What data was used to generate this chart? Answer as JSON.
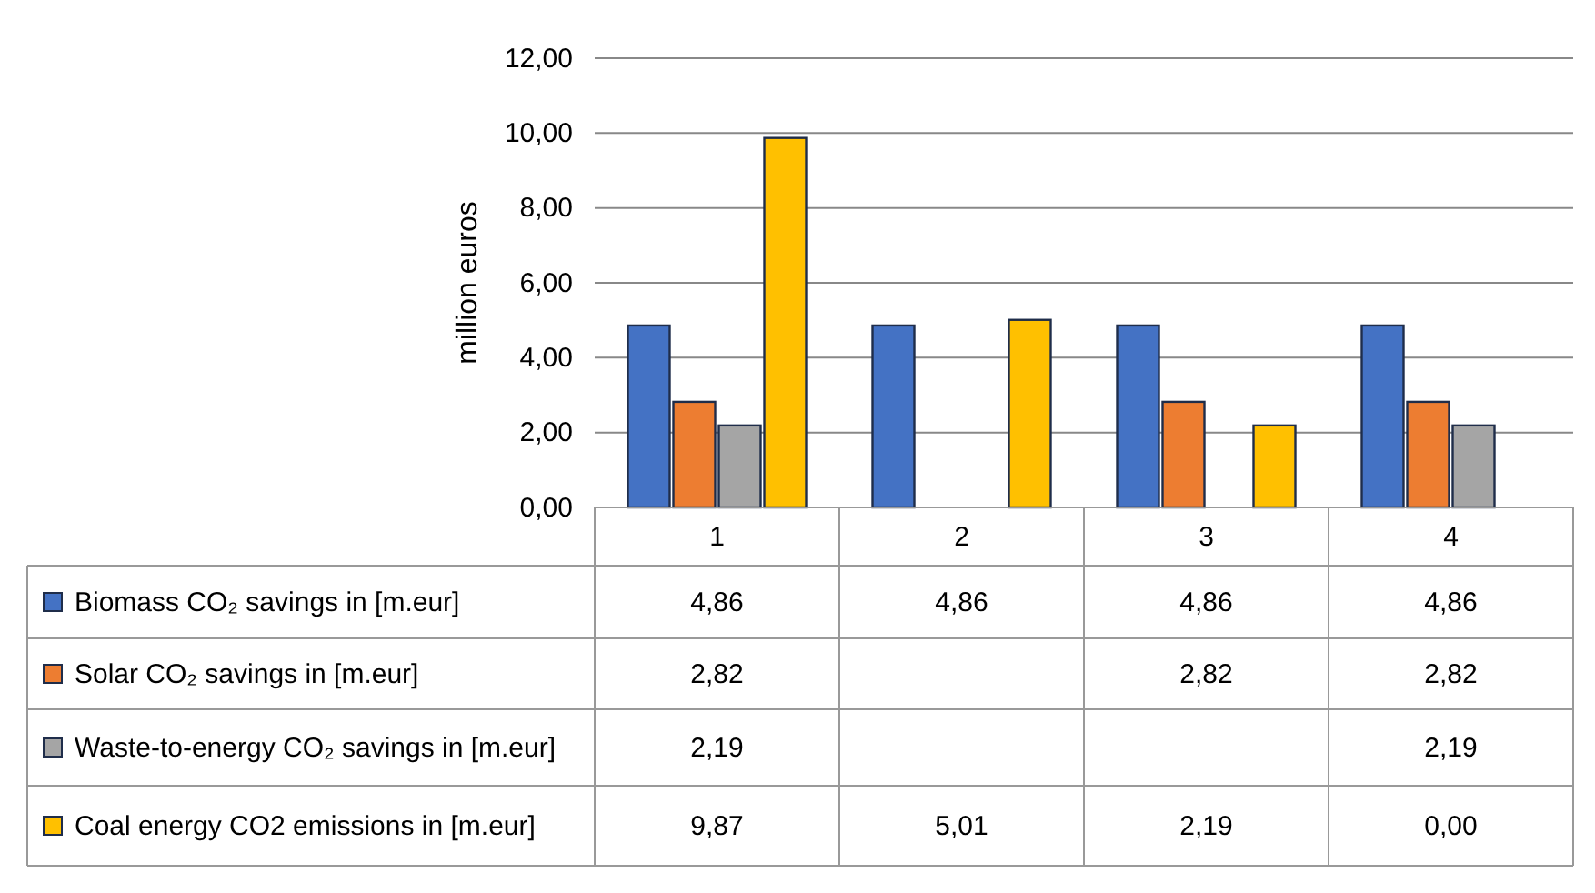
{
  "chart_data": {
    "type": "bar",
    "ylabel": "million euros",
    "categories": [
      "1",
      "2",
      "3",
      "4"
    ],
    "ylim": [
      0,
      12
    ],
    "yticks": [
      {
        "value": 0,
        "label": "0,00"
      },
      {
        "value": 2,
        "label": "2,00"
      },
      {
        "value": 4,
        "label": "4,00"
      },
      {
        "value": 6,
        "label": "6,00"
      },
      {
        "value": 8,
        "label": "8,00"
      },
      {
        "value": 10,
        "label": "10,00"
      },
      {
        "value": 12,
        "label": "12,00"
      }
    ],
    "grid": "y",
    "legend": "bottom",
    "series": [
      {
        "name": "Biomass CO₂ savings in [m.eur]",
        "color": "#4472c4",
        "values": [
          4.86,
          4.86,
          4.86,
          4.86
        ],
        "value_labels": [
          "4,86",
          "4,86",
          "4,86",
          "4,86"
        ]
      },
      {
        "name": "Solar CO₂ savings in [m.eur]",
        "color": "#ed7d31",
        "values": [
          2.82,
          null,
          2.82,
          2.82
        ],
        "value_labels": [
          "2,82",
          null,
          "2,82",
          "2,82"
        ]
      },
      {
        "name": "Waste-to-energy CO₂ savings in [m.eur]",
        "color": "#a5a5a5",
        "values": [
          2.19,
          null,
          null,
          2.19
        ],
        "value_labels": [
          "2,19",
          null,
          null,
          "2,19"
        ]
      },
      {
        "name": "Coal energy CO2 emissions in [m.eur]",
        "color": "#ffc000",
        "values": [
          9.87,
          5.01,
          2.19,
          0.0
        ],
        "value_labels": [
          "9,87",
          "5,01",
          "2,19",
          "0,00"
        ]
      }
    ]
  }
}
